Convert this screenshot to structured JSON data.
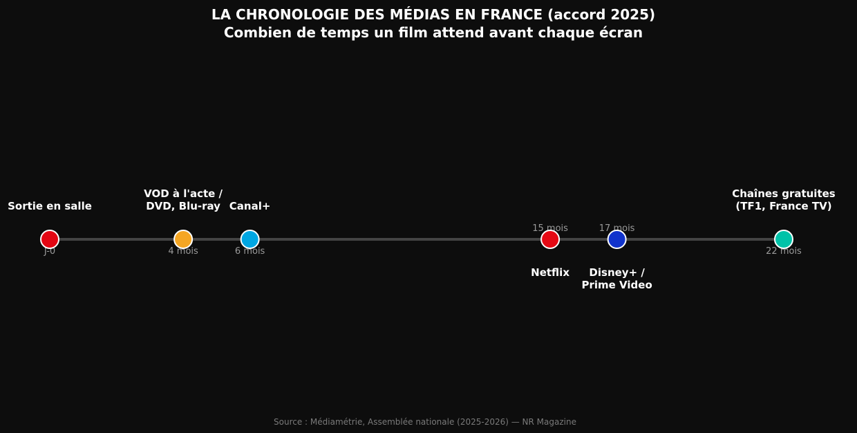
{
  "chart_data": {
    "type": "scatter",
    "title": "LA CHRONOLOGIE DES MÉDIAS EN FRANCE (accord 2025)",
    "subtitle": "Combien de temps un film attend avant chaque écran",
    "xlim": [
      0,
      22
    ],
    "grid": false,
    "points": [
      {
        "x": 0,
        "delay_label": "J-0",
        "label": [
          "Sortie en salle"
        ],
        "label_position": "above",
        "delay_position": "below",
        "color": "#e30613"
      },
      {
        "x": 4,
        "delay_label": "4 mois",
        "label": [
          "VOD à l'acte /",
          "DVD, Blu-ray"
        ],
        "label_position": "above",
        "delay_position": "below",
        "color": "#f5a623"
      },
      {
        "x": 6,
        "delay_label": "6 mois",
        "label": [
          "Canal+"
        ],
        "label_position": "above",
        "delay_position": "below",
        "color": "#00a6e2"
      },
      {
        "x": 15,
        "delay_label": "15 mois",
        "label": [
          "Netflix"
        ],
        "label_position": "below",
        "delay_position": "above",
        "color": "#e50914"
      },
      {
        "x": 17,
        "delay_label": "17 mois",
        "label": [
          "Disney+ /",
          "Prime Video"
        ],
        "label_position": "below",
        "delay_position": "above",
        "color": "#1133cc"
      },
      {
        "x": 22,
        "delay_label": "22 mois",
        "label": [
          "Chaînes gratuites",
          "(TF1, France TV)"
        ],
        "label_position": "above",
        "delay_position": "below",
        "color": "#00c2a8"
      }
    ],
    "line_color": "#444444"
  },
  "source": "Source : Médiamétrie, Assemblée nationale (2025-2026) — NR Magazine"
}
